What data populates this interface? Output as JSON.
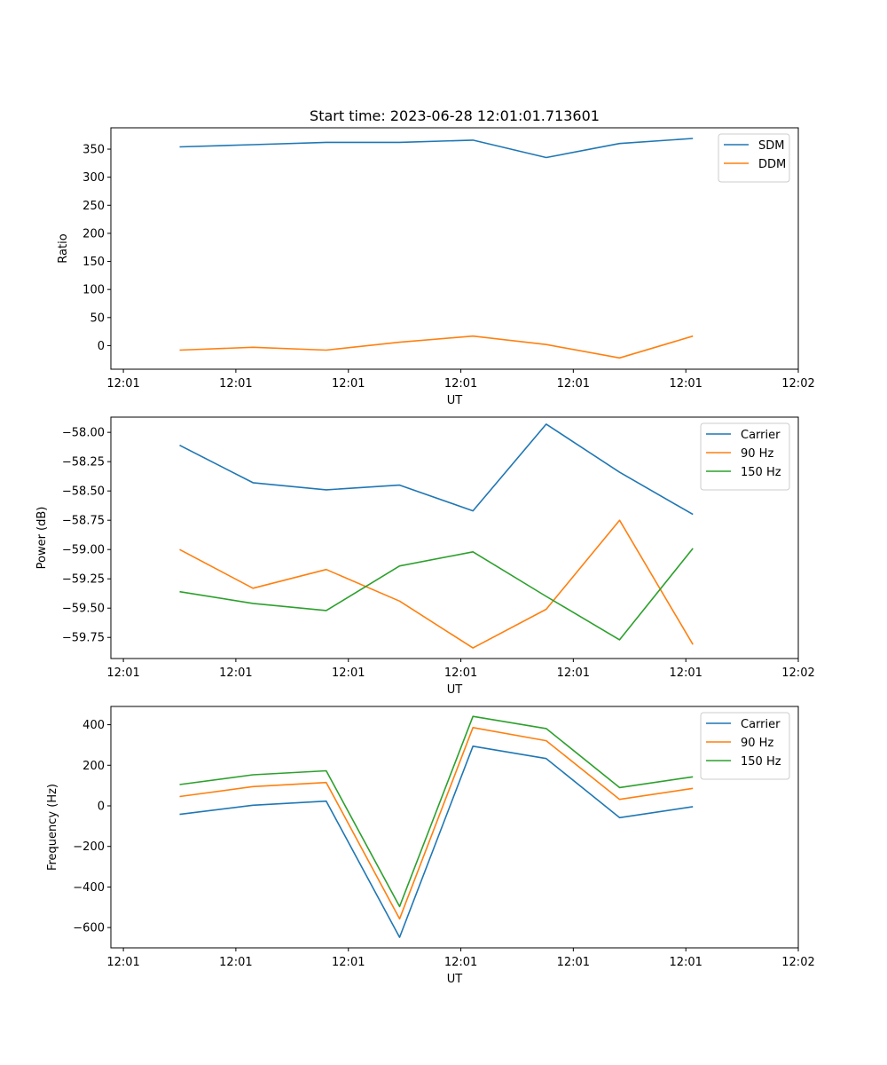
{
  "title": "Start time: 2023-06-28 12:01:01.713601",
  "chart_data": [
    {
      "type": "line",
      "xlabel": "UT",
      "ylabel": "Ratio",
      "x_tick_labels": [
        "12:01",
        "12:01",
        "12:01",
        "12:01",
        "12:01",
        "12:01",
        "12:02"
      ],
      "y_ticks": [
        0,
        50,
        100,
        150,
        200,
        250,
        300,
        350
      ],
      "ylim": [
        -42,
        388
      ],
      "legend_position": "top-right",
      "series": [
        {
          "name": "SDM",
          "color": "#1f77b4",
          "values": [
            354,
            358,
            362,
            362,
            366,
            335,
            360,
            369
          ]
        },
        {
          "name": "DDM",
          "color": "#ff7f0e",
          "values": [
            -8,
            -3,
            -8,
            6,
            17,
            2,
            -22,
            17
          ]
        }
      ]
    },
    {
      "type": "line",
      "xlabel": "UT",
      "ylabel": "Power (dB)",
      "x_tick_labels": [
        "12:01",
        "12:01",
        "12:01",
        "12:01",
        "12:01",
        "12:01",
        "12:02"
      ],
      "y_ticks": [
        -59.75,
        -59.5,
        -59.25,
        -59.0,
        -58.75,
        -58.5,
        -58.25,
        -58.0
      ],
      "y_tick_labels": [
        "−59.75",
        "−59.50",
        "−59.25",
        "−59.00",
        "−58.75",
        "−58.50",
        "−58.25",
        "−58.00"
      ],
      "ylim": [
        -59.93,
        -57.87
      ],
      "legend_position": "top-right",
      "series": [
        {
          "name": "Carrier",
          "color": "#1f77b4",
          "values": [
            -58.11,
            -58.43,
            -58.49,
            -58.45,
            -58.67,
            -57.93,
            -58.34,
            -58.7
          ]
        },
        {
          "name": "90 Hz",
          "color": "#ff7f0e",
          "values": [
            -59.0,
            -59.33,
            -59.17,
            -59.44,
            -59.84,
            -59.51,
            -58.75,
            -59.81
          ]
        },
        {
          "name": "150 Hz",
          "color": "#2ca02c",
          "values": [
            -59.36,
            -59.46,
            -59.52,
            -59.14,
            -59.02,
            -59.4,
            -59.77,
            -58.99
          ]
        }
      ]
    },
    {
      "type": "line",
      "xlabel": "UT",
      "ylabel": "Frequency (Hz)",
      "x_tick_labels": [
        "12:01",
        "12:01",
        "12:01",
        "12:01",
        "12:01",
        "12:01",
        "12:02"
      ],
      "y_ticks": [
        -600,
        -400,
        -200,
        0,
        200,
        400
      ],
      "y_tick_labels": [
        "−600",
        "−400",
        "−200",
        "0",
        "200",
        "400"
      ],
      "ylim": [
        -700,
        490
      ],
      "legend_position": "top-right",
      "series": [
        {
          "name": "Carrier",
          "color": "#1f77b4",
          "values": [
            -42,
            3,
            23,
            -648,
            294,
            233,
            -58,
            -4
          ]
        },
        {
          "name": "90 Hz",
          "color": "#ff7f0e",
          "values": [
            46,
            95,
            115,
            -557,
            386,
            321,
            32,
            86
          ]
        },
        {
          "name": "150 Hz",
          "color": "#2ca02c",
          "values": [
            105,
            153,
            173,
            -496,
            441,
            381,
            90,
            143
          ]
        }
      ]
    }
  ]
}
